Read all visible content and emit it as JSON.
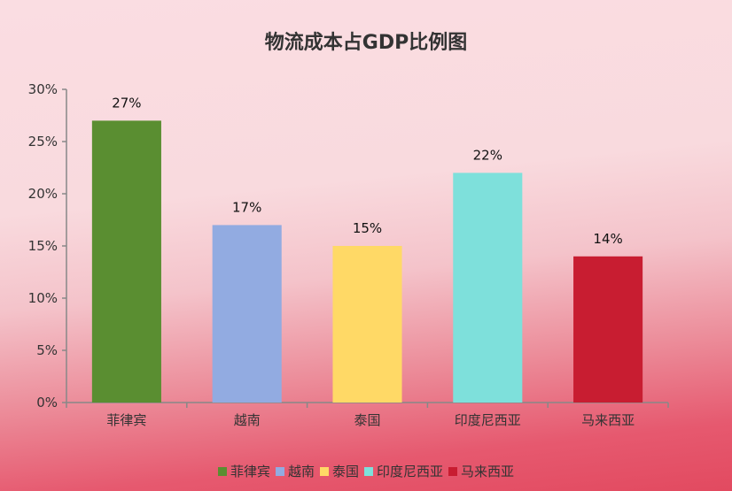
{
  "chart_data": {
    "type": "bar",
    "title": "物流成本占GDP比例图",
    "xlabel": "",
    "ylabel": "",
    "categories": [
      "菲律宾",
      "越南",
      "泰国",
      "印度尼西亚",
      "马来西亚"
    ],
    "values": [
      27,
      17,
      15,
      22,
      14
    ],
    "data_labels": [
      "27%",
      "17%",
      "15%",
      "22%",
      "14%"
    ],
    "colors": [
      "#5a8e31",
      "#92abe1",
      "#ffd966",
      "#7ee0db",
      "#c81d31"
    ],
    "ylim": [
      0,
      30
    ],
    "yticks": [
      0,
      5,
      10,
      15,
      20,
      25,
      30
    ],
    "ytick_labels": [
      "0%",
      "5%",
      "10%",
      "15%",
      "20%",
      "25%",
      "30%"
    ],
    "grid": false,
    "legend_position": "bottom"
  }
}
